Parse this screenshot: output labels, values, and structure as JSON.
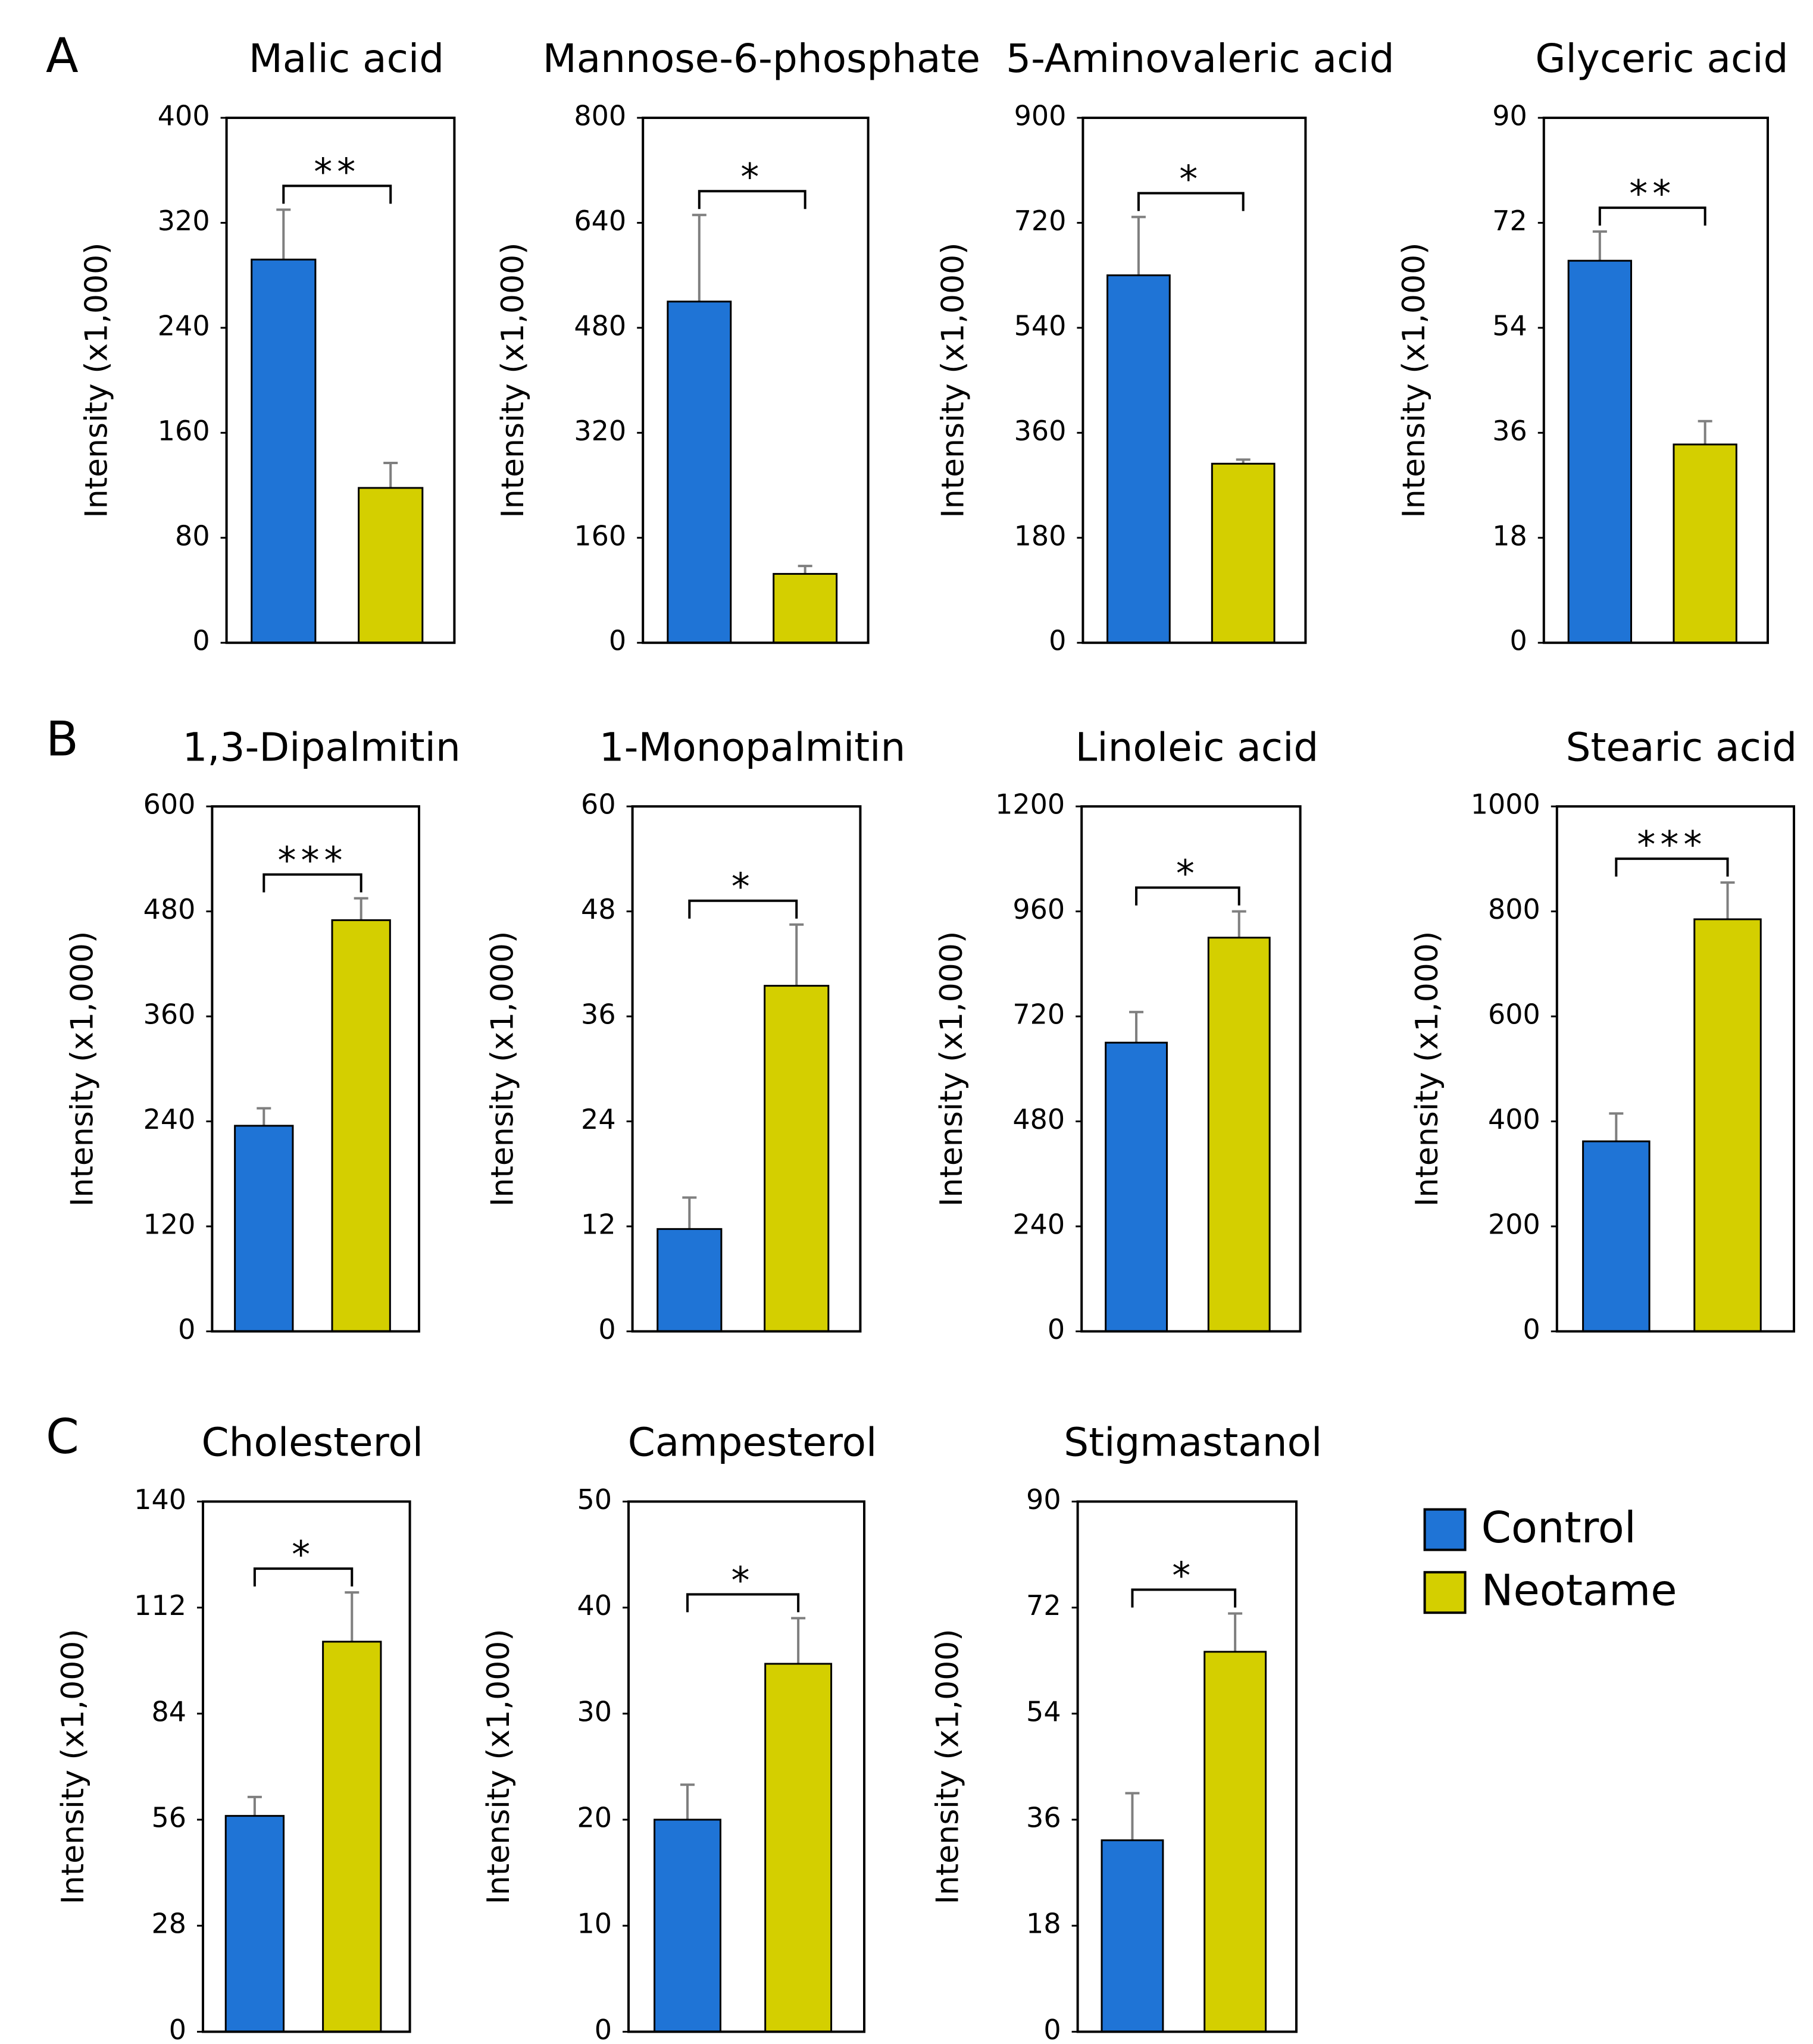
{
  "panels": [
    "A",
    "B",
    "C"
  ],
  "legend": [
    {
      "name": "Control",
      "color": "#1f74d6"
    },
    {
      "name": "Neotame",
      "color": "#d4cf00"
    }
  ],
  "chart_data": [
    {
      "type": "bar",
      "title": "Malic acid",
      "ylabel": "Intensity (x1,000)",
      "values": [
        292,
        118
      ],
      "errors": [
        38,
        19
      ],
      "significance": "**",
      "ylim": [
        0,
        400
      ],
      "yticks": [
        0,
        80,
        160,
        240,
        320,
        400
      ]
    },
    {
      "type": "bar",
      "title": "Mannose-6-phosphate",
      "ylabel": "Intensity (x1,000)",
      "values": [
        520,
        105
      ],
      "errors": [
        132,
        12
      ],
      "significance": "*",
      "ylim": [
        0,
        800
      ],
      "yticks": [
        0,
        160,
        320,
        480,
        640,
        800
      ]
    },
    {
      "type": "bar",
      "title": "5-Aminovaleric acid",
      "ylabel": "Intensity (x1,000)",
      "values": [
        630,
        307
      ],
      "errors": [
        100,
        7
      ],
      "significance": "*",
      "ylim": [
        0,
        900
      ],
      "yticks": [
        0,
        180,
        360,
        540,
        720,
        900
      ]
    },
    {
      "type": "bar",
      "title": "Glyceric acid",
      "ylabel": "Intensity (x1,000)",
      "values": [
        65.5,
        34
      ],
      "errors": [
        5,
        4
      ],
      "significance": "**",
      "ylim": [
        0,
        90
      ],
      "yticks": [
        0,
        18,
        36,
        54,
        72,
        90
      ]
    },
    {
      "type": "bar",
      "title": "1,3-Dipalmitin",
      "ylabel": "Intensity (x1,000)",
      "values": [
        235,
        470
      ],
      "errors": [
        20,
        25
      ],
      "significance": "***",
      "ylim": [
        0,
        600
      ],
      "yticks": [
        0,
        120,
        240,
        360,
        480,
        600
      ]
    },
    {
      "type": "bar",
      "title": "1-Monopalmitin",
      "ylabel": "Intensity (x1,000)",
      "values": [
        11.7,
        39.5
      ],
      "errors": [
        3.6,
        7
      ],
      "significance": "*",
      "ylim": [
        0,
        60
      ],
      "yticks": [
        0,
        12,
        24,
        36,
        48,
        60
      ]
    },
    {
      "type": "bar",
      "title": "Linoleic acid",
      "ylabel": "Intensity (x1,000)",
      "values": [
        660,
        900
      ],
      "errors": [
        70,
        60
      ],
      "significance": "*",
      "ylim": [
        0,
        1200
      ],
      "yticks": [
        0,
        240,
        480,
        720,
        960,
        1200
      ]
    },
    {
      "type": "bar",
      "title": "Stearic acid",
      "ylabel": "Intensity (x1,000)",
      "values": [
        362,
        785
      ],
      "errors": [
        53,
        70
      ],
      "significance": "***",
      "ylim": [
        0,
        1000
      ],
      "yticks": [
        0,
        200,
        400,
        600,
        800,
        1000
      ]
    },
    {
      "type": "bar",
      "title": "Cholesterol",
      "ylabel": "Intensity (x1,000)",
      "values": [
        57,
        103
      ],
      "errors": [
        5,
        13
      ],
      "significance": "*",
      "ylim": [
        0,
        140
      ],
      "yticks": [
        0,
        28,
        56,
        84,
        112,
        140
      ]
    },
    {
      "type": "bar",
      "title": "Campesterol",
      "ylabel": "Intensity (x1,000)",
      "values": [
        20,
        34.7
      ],
      "errors": [
        3.3,
        4.3
      ],
      "significance": "*",
      "ylim": [
        0,
        50
      ],
      "yticks": [
        0,
        10,
        20,
        30,
        40,
        50
      ]
    },
    {
      "type": "bar",
      "title": "Stigmastanol",
      "ylabel": "Intensity (x1,000)",
      "values": [
        32.5,
        64.5
      ],
      "errors": [
        8,
        6.5
      ],
      "significance": "*",
      "ylim": [
        0,
        90
      ],
      "yticks": [
        0,
        18,
        36,
        54,
        72,
        90
      ]
    }
  ]
}
